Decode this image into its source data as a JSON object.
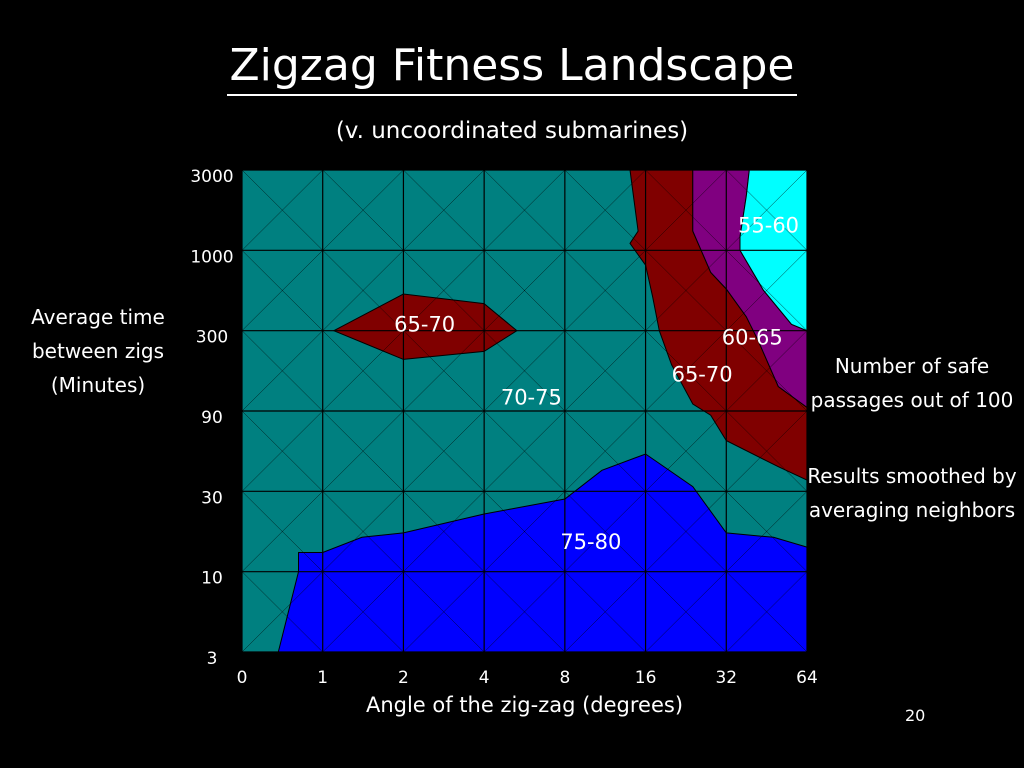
{
  "slide": {
    "title": "Zigzag Fitness Landscape",
    "subtitle": "(v. uncoordinated submarines)",
    "y_axis_label": "Average time\nbetween zigs\n(Minutes)",
    "x_axis_label": "Angle of the zig-zag (degrees)",
    "note_1": "Number of safe\npassages out of 100",
    "note_2": "Results smoothed by\naveraging neighbors",
    "page_number": "20"
  },
  "chart_data": {
    "type": "contour",
    "title": "Zigzag Fitness Landscape",
    "subtitle": "(v. uncoordinated submarines)",
    "xlabel": "Angle of the zig-zag (degrees)",
    "ylabel": "Average time between zigs (Minutes)",
    "x_ticks": [
      "0",
      "1",
      "2",
      "4",
      "8",
      "16",
      "32",
      "64"
    ],
    "y_ticks": [
      "3000",
      "1000",
      "300",
      "90",
      "30",
      "10",
      "3"
    ],
    "grid": true,
    "value_meaning": "Number of safe passages out of 100",
    "colors": {
      "background": "#000000",
      "70-75": "#008080",
      "75-80": "#0000ff",
      "65-70": "#800000",
      "60-65": "#800080",
      "55-60": "#00ffff",
      "grid": "#000000"
    },
    "regions": [
      {
        "label": "75-80",
        "color": "#0000ff",
        "boundary": [
          [
            0.45,
            3
          ],
          [
            0.7,
            10
          ],
          [
            0.7,
            13
          ],
          [
            1,
            13
          ],
          [
            1.4,
            16
          ],
          [
            2,
            17
          ],
          [
            4,
            22
          ],
          [
            8,
            27
          ],
          [
            11,
            40
          ],
          [
            16,
            50
          ],
          [
            24,
            32
          ],
          [
            32,
            17
          ],
          [
            48,
            16
          ],
          [
            64,
            14
          ],
          [
            64,
            3
          ]
        ]
      },
      {
        "label": "65-70",
        "color": "#800000",
        "boundary": [
          [
            14,
            3000
          ],
          [
            24,
            3000
          ],
          [
            24,
            1300
          ],
          [
            28,
            720
          ],
          [
            32,
            560
          ],
          [
            38,
            370
          ],
          [
            42,
            260
          ],
          [
            50,
            130
          ],
          [
            64,
            95
          ],
          [
            64,
            35
          ],
          [
            50,
            42
          ],
          [
            32,
            60
          ],
          [
            28,
            85
          ],
          [
            24,
            100
          ],
          [
            20,
            180
          ],
          [
            18,
            300
          ],
          [
            17,
            500
          ],
          [
            16,
            800
          ],
          [
            14,
            1100
          ],
          [
            15,
            1300
          ]
        ]
      },
      {
        "label": "65-70",
        "color": "#800000",
        "boundary": [
          [
            1.1,
            300
          ],
          [
            2,
            520
          ],
          [
            4,
            450
          ],
          [
            5.3,
            300
          ],
          [
            4,
            220
          ],
          [
            2,
            195
          ]
        ]
      },
      {
        "label": "60-65",
        "color": "#800080",
        "boundary": [
          [
            24,
            3000
          ],
          [
            39,
            3000
          ],
          [
            38,
            2100
          ],
          [
            36,
            1200
          ],
          [
            36,
            1000
          ],
          [
            44,
            550
          ],
          [
            56,
            330
          ],
          [
            64,
            300
          ],
          [
            64,
            95
          ],
          [
            50,
            130
          ],
          [
            42,
            260
          ],
          [
            38,
            370
          ],
          [
            32,
            560
          ],
          [
            28,
            720
          ],
          [
            24,
            1300
          ]
        ]
      },
      {
        "label": "55-60",
        "color": "#00ffff",
        "boundary": [
          [
            39,
            3000
          ],
          [
            64,
            3000
          ],
          [
            64,
            300
          ],
          [
            56,
            330
          ],
          [
            44,
            550
          ],
          [
            36,
            1000
          ],
          [
            36,
            1200
          ],
          [
            38,
            2100
          ]
        ]
      }
    ],
    "region_labels": [
      {
        "text": "55-60",
        "x": 46,
        "y": 1400
      },
      {
        "text": "60-65",
        "x": 40,
        "y": 270
      },
      {
        "text": "65-70",
        "x": 2.4,
        "y": 330
      },
      {
        "text": "65-70",
        "x": 26,
        "y": 155
      },
      {
        "text": "70-75",
        "x": 6,
        "y": 110
      },
      {
        "text": "75-80",
        "x": 10,
        "y": 15
      }
    ]
  }
}
